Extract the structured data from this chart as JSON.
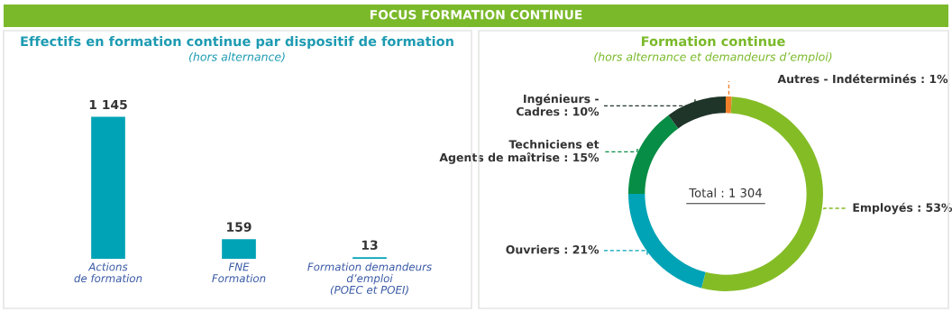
{
  "chart_data": [
    {
      "type": "bar",
      "title": "Effectifs en formation continue par dispositif de formation",
      "subtitle": "(hors alternance)",
      "annotations": [
        "FOCUS FORMATION CONTINUE"
      ],
      "categories": [
        "Actions\nde formation",
        "FNE\nFormation",
        "Formation demandeurs\nd’emploi\n(POEC et POEI)"
      ],
      "values": [
        1145,
        159,
        13
      ],
      "value_labels": [
        "1 145",
        "159",
        "13"
      ],
      "color": "#00a3b6",
      "grid": false,
      "legend": false
    },
    {
      "type": "donut",
      "title": "Formation continue",
      "subtitle": "(hors alternance et demandeurs d’emploi)",
      "annotations": [
        "Total : 1 304"
      ],
      "categories": [
        "Autres - Indéterminés : 1%",
        "Employés : 53%",
        "Ouvriers : 21%",
        "Techniciens et\nAgents de maîtrise : 15%",
        "Ingénieurs -\nCadres : 10%"
      ],
      "values": [
        1,
        53,
        21,
        15,
        10
      ],
      "colors": [
        "#f07f2a",
        "#84bc26",
        "#00a3b6",
        "#078d45",
        "#1f3529"
      ],
      "legend": false
    }
  ]
}
